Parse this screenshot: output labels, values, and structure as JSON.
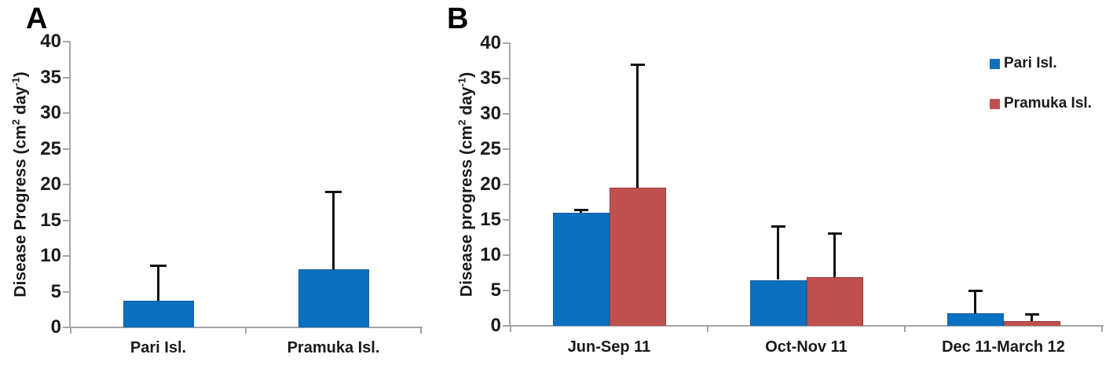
{
  "figure": {
    "background": "#ffffff"
  },
  "colors": {
    "pari_blue": "#0A70C0",
    "pari_blue_border": "#1A5C9E",
    "pramuka_red": "#C0504D",
    "pramuka_red_border": "#963F3D",
    "axis_gray": "#A6A6A6",
    "error_bar_black": "#111111",
    "text_black": "#1A1A1A"
  },
  "chart_data": [
    {
      "panel_label": "A",
      "type": "bar",
      "title": "",
      "ylabel": "Disease Progress (cm² day⁻¹)",
      "ylabel_parts": [
        "Disease Progress (cm",
        {
          "sup": "2"
        },
        " day",
        {
          "sup": "-1"
        },
        ")"
      ],
      "xlabel": "",
      "ylim": [
        0,
        40
      ],
      "ytick_step": 5,
      "ytick_labels": [
        "0",
        "5",
        "10",
        "15",
        "20",
        "25",
        "30",
        "35",
        "40"
      ],
      "grid": false,
      "legend": null,
      "categories": [
        "Pari Isl.",
        "Pramuka Isl."
      ],
      "series": [
        {
          "name": "Disease Progress",
          "color": "#0A70C0",
          "border": "#1A5C9E",
          "values": [
            3.7,
            8.1
          ],
          "error_plus": [
            4.9,
            10.9
          ]
        }
      ]
    },
    {
      "panel_label": "B",
      "type": "grouped-bar",
      "title": "",
      "ylabel": "Disease progress (cm² day⁻¹)",
      "ylabel_parts": [
        "Disease progress (cm",
        {
          "sup": "2"
        },
        " day",
        {
          "sup": "-1"
        },
        ")"
      ],
      "xlabel": "",
      "ylim": [
        0,
        40
      ],
      "ytick_step": 5,
      "ytick_labels": [
        "0",
        "5",
        "10",
        "15",
        "20",
        "25",
        "30",
        "35",
        "40"
      ],
      "grid": false,
      "legend": {
        "position": "top-right",
        "entries": [
          "Pari Isl.",
          "Pramuka Isl."
        ]
      },
      "categories": [
        "Jun-Sep 11",
        "Oct-Nov 11",
        "Dec 11-March 12"
      ],
      "series": [
        {
          "name": "Pari Isl.",
          "color": "#0A70C0",
          "border": "#1A5C9E",
          "values": [
            16.0,
            6.5,
            1.8
          ],
          "error_plus": [
            0.4,
            7.6,
            3.2
          ]
        },
        {
          "name": "Pramuka Isl.",
          "color": "#C0504D",
          "border": "#963F3D",
          "values": [
            19.6,
            6.9,
            0.7
          ],
          "error_plus": [
            17.4,
            6.2,
            0.9
          ]
        }
      ]
    }
  ]
}
